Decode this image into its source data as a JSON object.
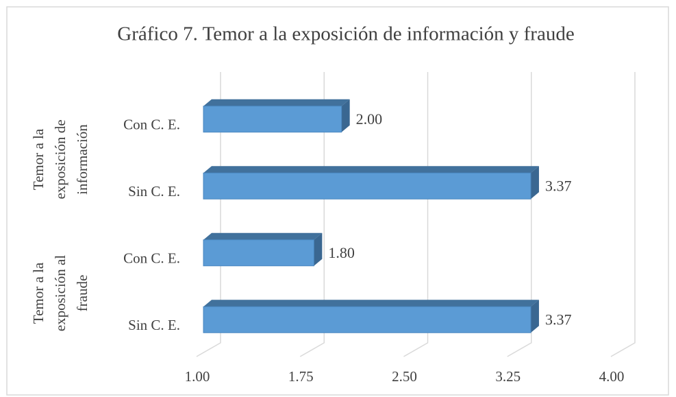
{
  "chart_data": {
    "type": "bar",
    "orientation": "horizontal",
    "title": "Gráfico 7. Temor a la exposición de información y fraude",
    "groups": [
      {
        "label": [
          "Temor a la",
          "exposición de",
          "información"
        ]
      },
      {
        "label": [
          "Temor a la",
          "exposición al",
          "fraude"
        ]
      }
    ],
    "categories": [
      "Con C. E.",
      "Sin C. E.",
      "Con C. E.",
      "Sin C. E."
    ],
    "values": [
      2.0,
      3.37,
      1.8,
      3.37
    ],
    "value_labels": [
      "2.00",
      "3.37",
      "1.80",
      "3.37"
    ],
    "color": "#5b9bd5",
    "xlim": [
      1,
      4
    ],
    "xticks": [
      {
        "value": 1,
        "label": "1.00"
      },
      {
        "value": 1.75,
        "label": "1.75"
      },
      {
        "value": 2.5,
        "label": "2.50"
      },
      {
        "value": 3.25,
        "label": "3.25"
      },
      {
        "value": 4,
        "label": "4.00"
      }
    ],
    "grid": true
  }
}
